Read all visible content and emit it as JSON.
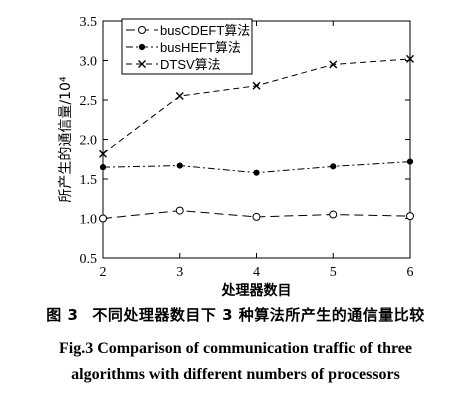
{
  "chart_data": {
    "type": "line",
    "x": [
      2,
      3,
      4,
      5,
      6
    ],
    "xlabel": "处理器数目",
    "ylabel": "所产生的通信量/10⁴",
    "xlim": [
      2,
      6
    ],
    "ylim": [
      0.5,
      3.5
    ],
    "xticks": [
      "2",
      "3",
      "4",
      "5",
      "6"
    ],
    "yticks": [
      "0.5",
      "1.0",
      "1.5",
      "2.0",
      "2.5",
      "3.0",
      "3.5"
    ],
    "grid": false,
    "legend_position": "top-left",
    "series": [
      {
        "name": "busCDEFT算法",
        "values": [
          1.0,
          1.1,
          1.02,
          1.05,
          1.03
        ],
        "marker": "circle",
        "dash": "long-dash"
      },
      {
        "name": "busHEFT算法",
        "values": [
          1.65,
          1.67,
          1.58,
          1.66,
          1.72
        ],
        "marker": "dot",
        "dash": "dash-dot"
      },
      {
        "name": "DTSV算法",
        "values": [
          1.82,
          2.55,
          2.68,
          2.95,
          3.02
        ],
        "marker": "cross",
        "dash": "dash"
      }
    ]
  },
  "caption": {
    "cn_label": "图 3",
    "cn_text": "不同处理器数目下 3 种算法所产生的通信量比较",
    "en_line1": "Fig.3    Comparison of communication traffic of three",
    "en_line2": "algorithms with different numbers of processors"
  }
}
